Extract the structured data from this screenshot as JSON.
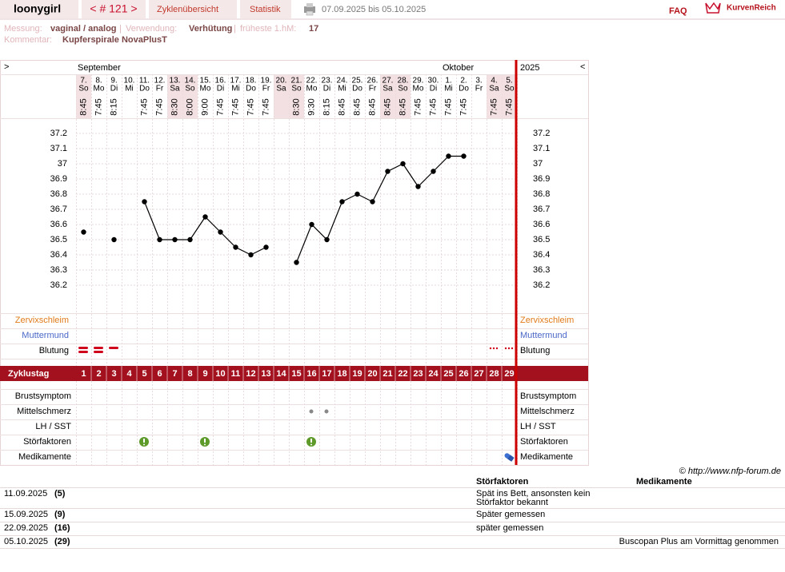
{
  "header": {
    "user": "loonygirl",
    "cycle_nav": "< # 121 >",
    "tabs": [
      "Zyklenübersicht",
      "Statistik"
    ],
    "period": "07.09.2025 bis 05.10.2025",
    "faq": "FAQ",
    "brand": "KurvenReich"
  },
  "info": {
    "measurement_label": "Messung:",
    "measurement": "vaginal / analog",
    "separator": "|",
    "usage_label": "Verwendung:",
    "usage": "Verhütung",
    "earliest_label": "früheste 1.hM:",
    "earliest": "17",
    "comment_label": "Kommentar:",
    "comment": "Kupferspirale NovaPlusT"
  },
  "chart_data": {
    "type": "line",
    "nav_left": ">",
    "nav_right": "<",
    "year": "2025",
    "months": [
      "September",
      "Oktober"
    ],
    "dates": [
      "7.",
      "8.",
      "9.",
      "10.",
      "11.",
      "12.",
      "13.",
      "14.",
      "15.",
      "16.",
      "17.",
      "18.",
      "19.",
      "20.",
      "21.",
      "22.",
      "23.",
      "24.",
      "25.",
      "26.",
      "27.",
      "28.",
      "29.",
      "30.",
      "1.",
      "2.",
      "3.",
      "4.",
      "5."
    ],
    "weekdays": [
      "So",
      "Mo",
      "Di",
      "Mi",
      "Do",
      "Fr",
      "Sa",
      "So",
      "Mo",
      "Di",
      "Mi",
      "Do",
      "Fr",
      "Sa",
      "So",
      "Mo",
      "Di",
      "Mi",
      "Do",
      "Fr",
      "Sa",
      "So",
      "Mo",
      "Di",
      "Mi",
      "Do",
      "Fr",
      "Sa",
      "So"
    ],
    "times": [
      "8:45",
      "7:45",
      "8:15",
      null,
      "7:45",
      "7:45",
      "8:30",
      "8:00",
      "9:00",
      "7:45",
      "7:45",
      "7:45",
      "7:45",
      null,
      "8:30",
      "9:30",
      "8:15",
      "8:45",
      "8:45",
      "8:45",
      "8:45",
      "8:45",
      "7:45",
      "7:45",
      "7:45",
      "7:45",
      null,
      "7:45",
      "7:45"
    ],
    "x": [
      1,
      2,
      3,
      4,
      5,
      6,
      7,
      8,
      9,
      10,
      11,
      12,
      13,
      14,
      15,
      16,
      17,
      18,
      19,
      20,
      21,
      22,
      23,
      24,
      25,
      26,
      27,
      28,
      29
    ],
    "series": [
      {
        "name": "Temperatur",
        "color": "#000000",
        "values": [
          36.55,
          null,
          36.5,
          null,
          36.75,
          36.5,
          36.5,
          36.5,
          36.65,
          36.55,
          36.45,
          36.4,
          36.45,
          null,
          36.35,
          36.6,
          36.5,
          36.75,
          36.8,
          36.75,
          36.95,
          37.0,
          36.85,
          36.95,
          37.05,
          37.05,
          null,
          null,
          null
        ]
      }
    ],
    "ylim": [
      36.0,
      37.3
    ],
    "yticks": [
      36.2,
      36.3,
      36.4,
      36.5,
      36.6,
      36.7,
      36.8,
      36.9,
      37,
      37.1,
      37.2
    ],
    "grid": true,
    "upper_rows": [
      "Zervixschleim",
      "Muttermund",
      "Blutung"
    ],
    "cycle_day_label": "Zyklustag",
    "lower_rows": [
      "Brustsymptom",
      "Mittelschmerz",
      "LH / SST",
      "Störfaktoren",
      "Medikamente"
    ]
  },
  "footer": {
    "copyright": "© http://www.nfp-forum.de",
    "headers": [
      "Störfaktoren",
      "Medikamente"
    ],
    "notes": [
      {
        "date": "11.09.2025",
        "day": "(5)",
        "stoerfaktoren": "Spät ins Bett, ansonsten kein Störfaktor bekannt"
      },
      {
        "date": "15.09.2025",
        "day": "(9)",
        "stoerfaktoren": "Später gemessen"
      },
      {
        "date": "22.09.2025",
        "day": "(16)",
        "stoerfaktoren": "später gemessen"
      },
      {
        "date": "05.10.2025",
        "day": "(29)",
        "medikamente": "Buscopan Plus am Vormittag genommen"
      }
    ]
  }
}
